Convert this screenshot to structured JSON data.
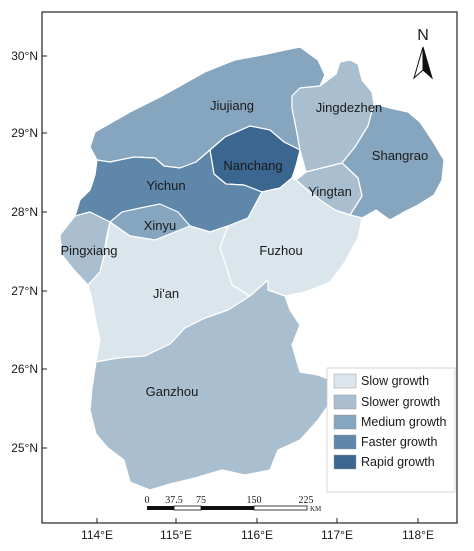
{
  "colors": {
    "slow": "#dbe6ec",
    "slower": "#a9bfd0",
    "medium": "#86a5bf",
    "faster": "#5e87aa",
    "rapid": "#3a6690",
    "frame": "#222222"
  },
  "regions": [
    {
      "name": "Jiujiang",
      "class": "medium"
    },
    {
      "name": "Jingdezhen",
      "class": "slower"
    },
    {
      "name": "Shangrao",
      "class": "medium"
    },
    {
      "name": "Nanchang",
      "class": "rapid"
    },
    {
      "name": "Yichun",
      "class": "faster"
    },
    {
      "name": "Yingtan",
      "class": "slower"
    },
    {
      "name": "Xinyu",
      "class": "medium"
    },
    {
      "name": "Pingxiang",
      "class": "slower"
    },
    {
      "name": "Fuzhou",
      "class": "slow"
    },
    {
      "name": "Ji'an",
      "class": "slow"
    },
    {
      "name": "Ganzhou",
      "class": "slower"
    }
  ],
  "lat_ticks": [
    "30°N",
    "29°N",
    "28°N",
    "27°N",
    "26°N",
    "25°N"
  ],
  "lon_ticks": [
    "114°E",
    "115°E",
    "116°E",
    "117°E",
    "118°E"
  ],
  "legend": [
    {
      "label": "Slow growth",
      "class": "slow"
    },
    {
      "label": "Slower growth",
      "class": "slower"
    },
    {
      "label": "Medium growth",
      "class": "medium"
    },
    {
      "label": "Faster growth",
      "class": "faster"
    },
    {
      "label": "Rapid growth",
      "class": "rapid"
    }
  ],
  "scale_bar": {
    "labels": [
      "0",
      "37.5",
      "75",
      "150",
      "225"
    ],
    "unit": "KM"
  },
  "north_arrow": {
    "label": "N",
    "icon": "north-arrow-icon"
  }
}
